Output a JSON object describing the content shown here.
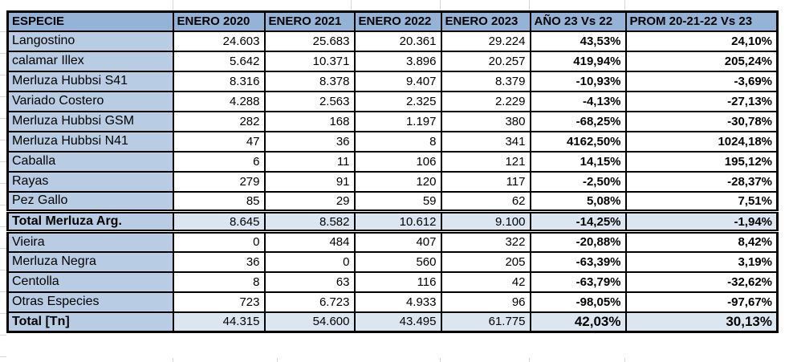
{
  "table": {
    "header": [
      "ESPECIE",
      "ENERO 2020",
      "ENERO 2021",
      "ENERO 2022",
      "ENERO 2023",
      "AÑO 23 Vs 22",
      "PROM 20-21-22 Vs 23"
    ],
    "rows": [
      {
        "species": "Langostino",
        "type": "species",
        "values": [
          "24.603",
          "25.683",
          "20.361",
          "29.224",
          "43,53%",
          "24,10%"
        ]
      },
      {
        "species": "calamar Illex",
        "type": "species",
        "values": [
          "5.642",
          "10.371",
          "3.896",
          "20.257",
          "419,94%",
          "205,24%"
        ]
      },
      {
        "species": "Merluza Hubbsi S41",
        "type": "species",
        "values": [
          "8.316",
          "8.378",
          "9.407",
          "8.379",
          "-10,93%",
          "-3,69%"
        ]
      },
      {
        "species": "Variado Costero",
        "type": "species",
        "values": [
          "4.288",
          "2.563",
          "2.325",
          "2.229",
          "-4,13%",
          "-27,13%"
        ]
      },
      {
        "species": "Merluza Hubbsi GSM",
        "type": "species",
        "values": [
          "282",
          "168",
          "1.197",
          "380",
          "-68,25%",
          "-30,78%"
        ]
      },
      {
        "species": "Merluza Hubbsi N41",
        "type": "species",
        "values": [
          "47",
          "36",
          "8",
          "341",
          "4162,50%",
          "1024,18%"
        ]
      },
      {
        "species": "Caballa",
        "type": "species",
        "values": [
          "6",
          "11",
          "106",
          "121",
          "14,15%",
          "195,12%"
        ]
      },
      {
        "species": "Rayas",
        "type": "species",
        "values": [
          "279",
          "91",
          "120",
          "117",
          "-2,50%",
          "-28,37%"
        ]
      },
      {
        "species": "Pez Gallo",
        "type": "species",
        "values": [
          "85",
          "29",
          "59",
          "62",
          "5,08%",
          "7,51%"
        ]
      },
      {
        "species": "Total Merluza Arg.",
        "type": "subtotal",
        "values": [
          "8.645",
          "8.582",
          "10.612",
          "9.100",
          "-14,25%",
          "-1,94%"
        ]
      },
      {
        "species": "Vieira",
        "type": "species",
        "values": [
          "0",
          "484",
          "407",
          "322",
          "-20,88%",
          "8,42%"
        ]
      },
      {
        "species": "Merluza Negra",
        "type": "species",
        "values": [
          "36",
          "0",
          "560",
          "205",
          "-63,39%",
          "3,19%"
        ]
      },
      {
        "species": "Centolla",
        "type": "species",
        "values": [
          "8",
          "63",
          "116",
          "42",
          "-63,79%",
          "-32,62%"
        ]
      },
      {
        "species": "Otras Especies",
        "type": "species",
        "values": [
          "723",
          "6.723",
          "4.933",
          "96",
          "-98,05%",
          "-97,67%"
        ]
      },
      {
        "species": "Total [Tn]",
        "type": "grand_total",
        "values": [
          "44.315",
          "54.600",
          "43.495",
          "61.775",
          "42,03%",
          "30,13%"
        ]
      }
    ]
  },
  "colors": {
    "header_fill": "#95B3D7",
    "species_fill": "#B8CCE4",
    "total_fill": "#DCE6F1",
    "border": "#000000",
    "gridline": "#D6D6D6",
    "text": "#000000"
  }
}
